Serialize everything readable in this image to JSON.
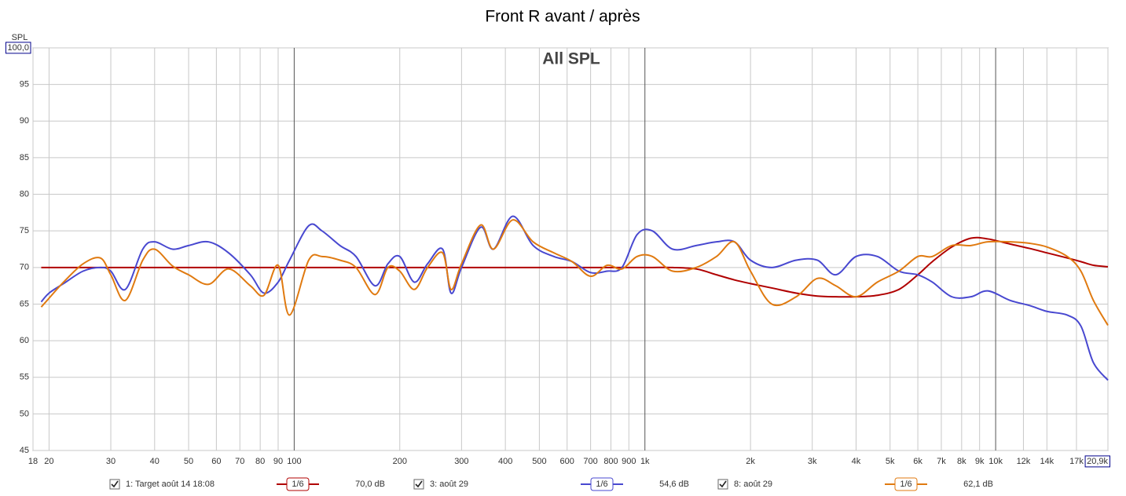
{
  "chart_data": {
    "type": "line",
    "title": "Front R avant / après",
    "subtitle": "All SPL",
    "y_label": "SPL",
    "log_x": true,
    "grid": true,
    "xlim": [
      18,
      20900
    ],
    "ylim": [
      45,
      100
    ],
    "yticks": [
      45,
      50,
      55,
      60,
      65,
      70,
      75,
      80,
      85,
      90,
      95,
      {
        "value": 100,
        "label": "100,0"
      }
    ],
    "xticks": [
      18,
      20,
      30,
      40,
      50,
      60,
      70,
      80,
      90,
      100,
      200,
      300,
      400,
      500,
      600,
      700,
      800,
      900,
      {
        "value": 1000,
        "label": "1k"
      },
      {
        "value": 2000,
        "label": "2k"
      },
      {
        "value": 3000,
        "label": "3k"
      },
      {
        "value": 4000,
        "label": "4k"
      },
      {
        "value": 5000,
        "label": "5k"
      },
      {
        "value": 6000,
        "label": "6k"
      },
      {
        "value": 7000,
        "label": "7k"
      },
      {
        "value": 8000,
        "label": "8k"
      },
      {
        "value": 9000,
        "label": "9k"
      },
      {
        "value": 10000,
        "label": "10k"
      },
      {
        "value": 12000,
        "label": "12k"
      },
      {
        "value": 14000,
        "label": "14k"
      },
      {
        "value": 17000,
        "label": "17k"
      },
      {
        "value": 20900,
        "label": "20,9k"
      }
    ],
    "x": [
      19,
      20,
      22,
      25,
      28,
      30,
      33,
      37,
      40,
      45,
      50,
      57,
      65,
      75,
      82,
      90,
      97,
      110,
      120,
      135,
      150,
      170,
      185,
      200,
      220,
      240,
      265,
      280,
      300,
      340,
      370,
      420,
      480,
      550,
      620,
      700,
      780,
      860,
      950,
      1050,
      1200,
      1400,
      1600,
      1800,
      2000,
      2300,
      2700,
      3100,
      3500,
      4000,
      4600,
      5300,
      6000,
      6600,
      7500,
      8500,
      9500,
      11000,
      12500,
      14000,
      16000,
      17500,
      19000,
      20900
    ],
    "series": [
      {
        "name": "1: Target août 14 18:08",
        "smoothing": "1/6",
        "readout": "70,0 dB",
        "color": "#b00000",
        "values": [
          70,
          70,
          70,
          70,
          70,
          70,
          70,
          70,
          70,
          70,
          70,
          70,
          70,
          70,
          70,
          70,
          70,
          70,
          70,
          70,
          70,
          70,
          70,
          70,
          70,
          70,
          70,
          70,
          70,
          70,
          70,
          70,
          70,
          70,
          70,
          70,
          70,
          70,
          70,
          70,
          70,
          69.8,
          69,
          68.3,
          67.8,
          67.2,
          66.5,
          66.1,
          66,
          66,
          66.2,
          67,
          69,
          70.8,
          72.8,
          74,
          73.9,
          73.2,
          72.6,
          72,
          71.3,
          70.8,
          70.3,
          70.1
        ]
      },
      {
        "name": "3: août 29",
        "smoothing": "1/6",
        "readout": "54,6 dB",
        "color": "#4848d0",
        "values": [
          65.3,
          66.5,
          67.8,
          69.5,
          70,
          69.5,
          67,
          72.5,
          73.5,
          72.5,
          73,
          73.5,
          72,
          69,
          66.5,
          68,
          71,
          75.7,
          75,
          73,
          71.5,
          67.5,
          70.5,
          71.5,
          68,
          70.5,
          72.5,
          66.5,
          70,
          75.5,
          72.5,
          77,
          73,
          71.5,
          70.8,
          69.3,
          69.5,
          70,
          74.5,
          75,
          72.5,
          73,
          73.5,
          73.5,
          71,
          70,
          71,
          71,
          69,
          71.5,
          71.5,
          69.5,
          69,
          68,
          66,
          66,
          66.8,
          65.5,
          64.8,
          64,
          63.5,
          62,
          57,
          54.6
        ]
      },
      {
        "name": "8: août 29",
        "smoothing": "1/6",
        "readout": "62,1 dB",
        "color": "#e07a10",
        "values": [
          64.6,
          65.8,
          68,
          70.5,
          71.3,
          69,
          65.5,
          71,
          72.5,
          70.2,
          69,
          67.7,
          69.8,
          67.5,
          66.2,
          70.3,
          63.5,
          71,
          71.5,
          71,
          70,
          66.3,
          70,
          69.5,
          67,
          70,
          72,
          67,
          70.5,
          75.8,
          72.5,
          76.5,
          73.5,
          72,
          70.8,
          68.8,
          70.3,
          69.8,
          71.5,
          71.5,
          69.5,
          70,
          71.5,
          73.5,
          69.5,
          65,
          66,
          68.5,
          67.5,
          66,
          68,
          69.5,
          71.5,
          71.5,
          73,
          73,
          73.5,
          73.5,
          73.3,
          72.8,
          71.5,
          69.5,
          65.5,
          62.1
        ]
      }
    ]
  }
}
